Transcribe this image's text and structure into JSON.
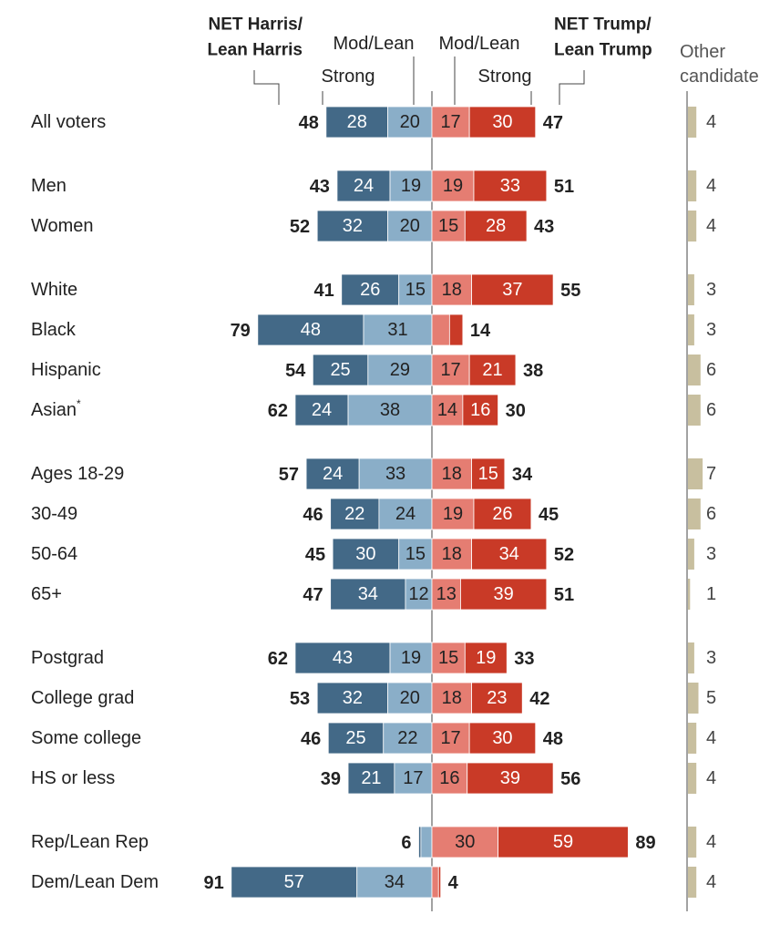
{
  "chart_data": {
    "type": "bar",
    "orientation": "horizontal-diverging",
    "headers": {
      "net_harris": [
        "NET Harris/",
        "Lean Harris"
      ],
      "net_trump": [
        "NET Trump/",
        "Lean Trump"
      ],
      "harris_strong": "Strong",
      "harris_mod": "Mod/Lean",
      "trump_mod": "Mod/Lean",
      "trump_strong": "Strong",
      "other": [
        "Other",
        "candidate"
      ]
    },
    "colors": {
      "harris_strong": "#436987",
      "harris_mod": "#8aaec8",
      "trump_mod": "#e57d72",
      "trump_strong": "#c93a27",
      "other": "#c8bf9f"
    },
    "groups": [
      [
        {
          "label": "All voters",
          "hs": 28,
          "hm": 20,
          "net_h": 48,
          "tm": 17,
          "ts": 30,
          "net_t": 47,
          "other": 4
        }
      ],
      [
        {
          "label": "Men",
          "hs": 24,
          "hm": 19,
          "net_h": 43,
          "tm": 19,
          "ts": 33,
          "net_t": 51,
          "other": 4
        },
        {
          "label": "Women",
          "hs": 32,
          "hm": 20,
          "net_h": 52,
          "tm": 15,
          "ts": 28,
          "net_t": 43,
          "other": 4
        }
      ],
      [
        {
          "label": "White",
          "hs": 26,
          "hm": 15,
          "net_h": 41,
          "tm": 18,
          "ts": 37,
          "net_t": 55,
          "other": 3
        },
        {
          "label": "Black",
          "hs": 48,
          "hm": 31,
          "net_h": 79,
          "tm": 8,
          "ts": 6,
          "net_t": 14,
          "other": 3,
          "hide_trump_labels": true
        },
        {
          "label": "Hispanic",
          "hs": 25,
          "hm": 29,
          "net_h": 54,
          "tm": 17,
          "ts": 21,
          "net_t": 38,
          "other": 6
        },
        {
          "label": "Asian",
          "sup": "*",
          "hs": 24,
          "hm": 38,
          "net_h": 62,
          "tm": 14,
          "ts": 16,
          "net_t": 30,
          "other": 6
        }
      ],
      [
        {
          "label": "Ages 18-29",
          "hs": 24,
          "hm": 33,
          "net_h": 57,
          "tm": 18,
          "ts": 15,
          "net_t": 34,
          "other": 7
        },
        {
          "label": "30-49",
          "hs": 22,
          "hm": 24,
          "net_h": 46,
          "tm": 19,
          "ts": 26,
          "net_t": 45,
          "other": 6
        },
        {
          "label": "50-64",
          "hs": 30,
          "hm": 15,
          "net_h": 45,
          "tm": 18,
          "ts": 34,
          "net_t": 52,
          "other": 3
        },
        {
          "label": "65+",
          "hs": 34,
          "hm": 12,
          "net_h": 47,
          "tm": 13,
          "ts": 39,
          "net_t": 51,
          "other": 1
        }
      ],
      [
        {
          "label": "Postgrad",
          "hs": 43,
          "hm": 19,
          "net_h": 62,
          "tm": 15,
          "ts": 19,
          "net_t": 33,
          "other": 3
        },
        {
          "label": "College grad",
          "hs": 32,
          "hm": 20,
          "net_h": 53,
          "tm": 18,
          "ts": 23,
          "net_t": 42,
          "other": 5
        },
        {
          "label": "Some college",
          "hs": 25,
          "hm": 22,
          "net_h": 46,
          "tm": 17,
          "ts": 30,
          "net_t": 48,
          "other": 4
        },
        {
          "label": "HS or less",
          "hs": 21,
          "hm": 17,
          "net_h": 39,
          "tm": 16,
          "ts": 39,
          "net_t": 56,
          "other": 4
        }
      ],
      [
        {
          "label": "Rep/Lean Rep",
          "hs": 1,
          "hm": 5,
          "net_h": 6,
          "tm": 30,
          "ts": 59,
          "net_t": 89,
          "other": 4,
          "hide_harris_labels": true
        },
        {
          "label": "Dem/Lean Dem",
          "hs": 57,
          "hm": 34,
          "net_h": 91,
          "tm": 3,
          "ts": 1,
          "net_t": 4,
          "other": 4,
          "hide_trump_labels": true
        }
      ]
    ]
  }
}
